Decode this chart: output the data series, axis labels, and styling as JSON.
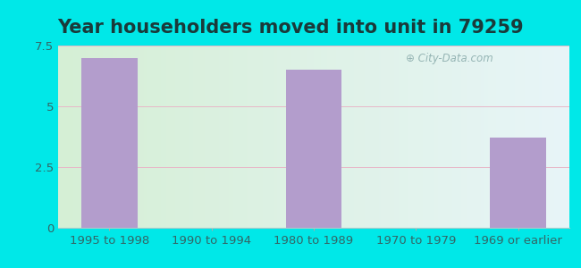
{
  "title": "Year householders moved into unit in 79259",
  "categories": [
    "1995 to 1998",
    "1990 to 1994",
    "1980 to 1989",
    "1970 to 1979",
    "1969 or earlier"
  ],
  "values": [
    7.0,
    0,
    6.5,
    0,
    3.7
  ],
  "bar_color": "#b39dcc",
  "ylim": [
    0,
    7.5
  ],
  "yticks": [
    0,
    2.5,
    5,
    7.5
  ],
  "ytick_labels": [
    "0",
    "2.5",
    "5",
    "7.5"
  ],
  "outer_bg": "#00e8e8",
  "inner_bg_left": "#d5efd5",
  "inner_bg_right": "#e8f5f8",
  "title_fontsize": 15,
  "title_color": "#1a3a3a",
  "tick_fontsize": 9.5,
  "tick_color": "#336666",
  "grid_color": "#e8b8c8",
  "watermark": "  City-Data.com",
  "watermark_icon": "ⓘ"
}
